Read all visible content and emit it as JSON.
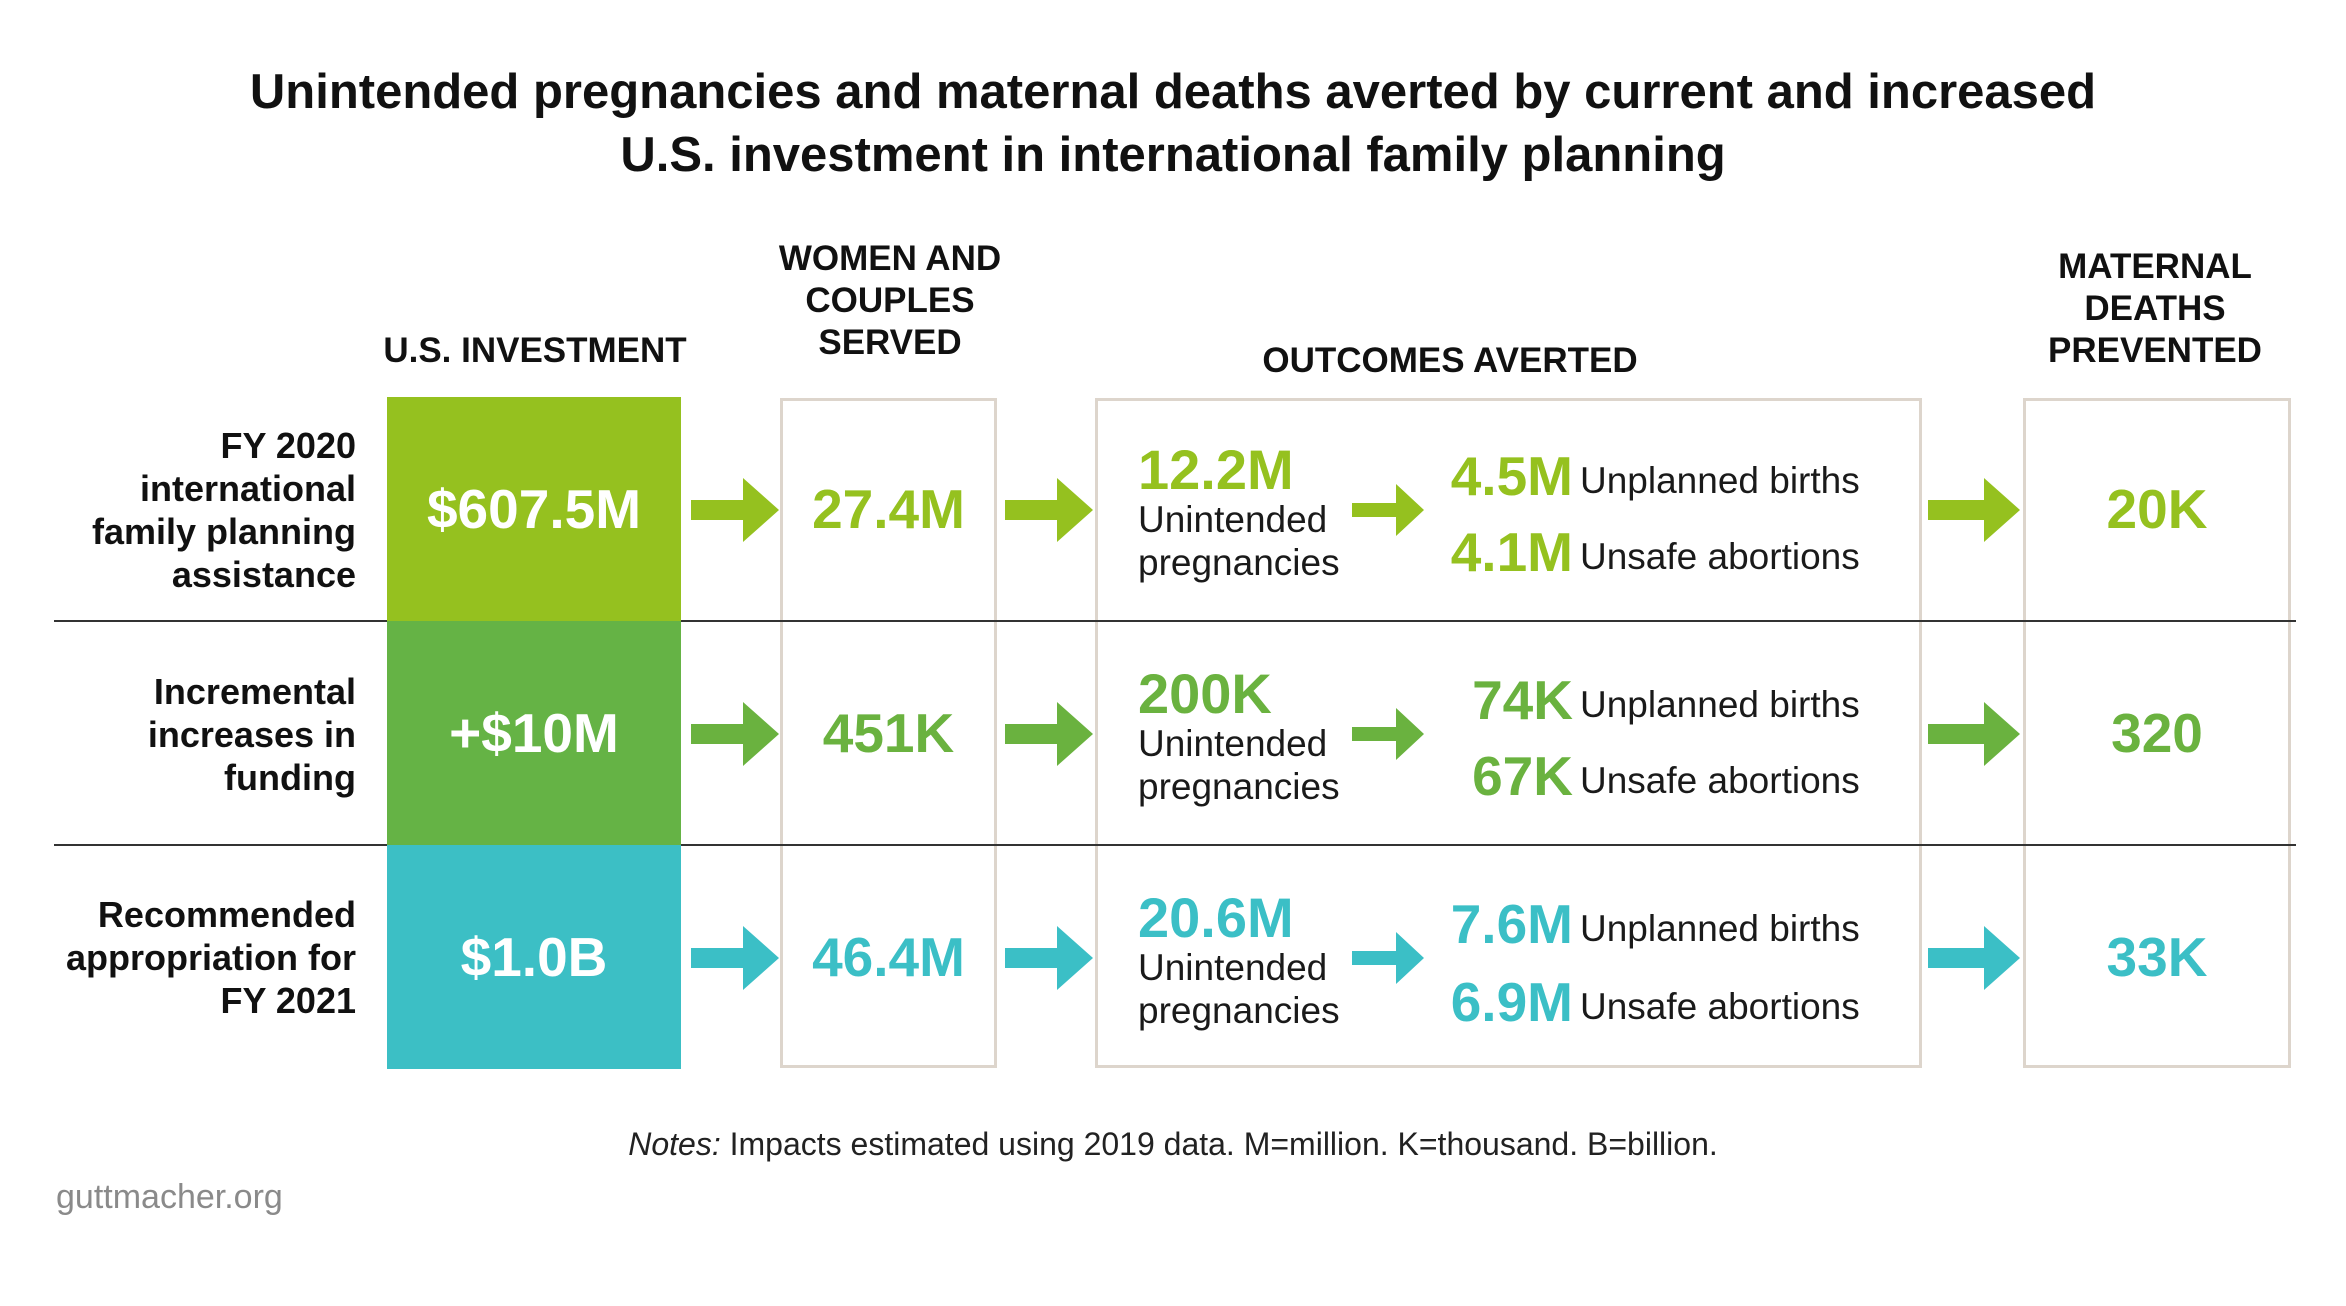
{
  "title_line1": "Unintended pregnancies and maternal deaths averted by current and increased",
  "title_line2": "U.S. investment in international family planning",
  "columns": {
    "investment": "U.S. INVESTMENT",
    "served": [
      "WOMEN AND",
      "COUPLES",
      "SERVED"
    ],
    "outcomes": "OUTCOMES AVERTED",
    "deaths": [
      "MATERNAL",
      "DEATHS",
      "PREVENTED"
    ]
  },
  "labels": {
    "unintended": [
      "Unintended",
      "pregnancies"
    ],
    "births": "Unplanned births",
    "abortions": "Unsafe abortions"
  },
  "rows": [
    {
      "label": [
        "FY 2020",
        "international",
        "family planning",
        "assistance"
      ],
      "investment": "$607.5M",
      "served": "27.4M",
      "unintended": "12.2M",
      "births": "4.5M",
      "abortions": "4.1M",
      "deaths": "20K",
      "color": "#95c11f",
      "box_color": "#95c11f"
    },
    {
      "label": [
        "Incremental",
        "increases in",
        "funding"
      ],
      "investment": "+$10M",
      "served": "451K",
      "unintended": "200K",
      "births": "74K",
      "abortions": "67K",
      "deaths": "320",
      "color": "#6ab23f",
      "box_color": "#65b345"
    },
    {
      "label": [
        "Recommended",
        "appropriation for",
        "FY 2021"
      ],
      "investment": "$1.0B",
      "served": "46.4M",
      "unintended": "20.6M",
      "births": "7.6M",
      "abortions": "6.9M",
      "deaths": "33K",
      "color": "#3bbfc6",
      "box_color": "#3cbfc5"
    }
  ],
  "notes_italic": "Notes:",
  "notes_text": "Impacts estimated using 2019 data. M=million. K=thousand. B=billion.",
  "source": "guttmacher.org"
}
